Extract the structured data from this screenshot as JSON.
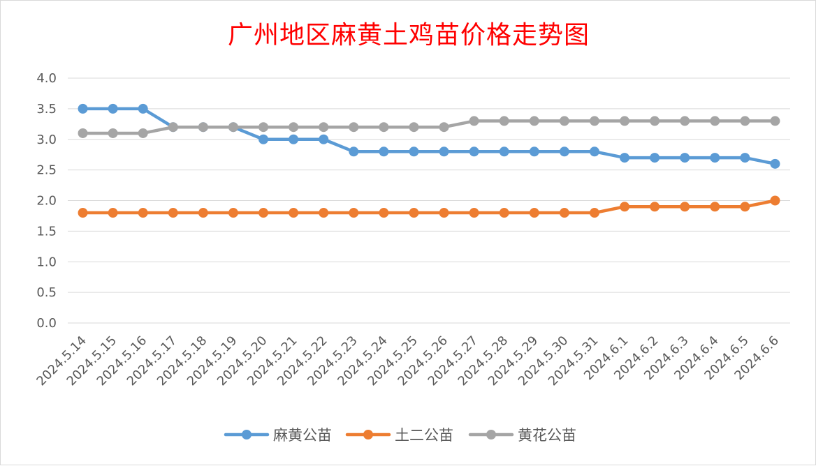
{
  "chart_data": {
    "type": "line",
    "title": "广州地区麻黄土鸡苗价格走势图",
    "xlabel": "",
    "ylabel": "",
    "ylim": [
      0,
      4
    ],
    "yticks": [
      "0.0",
      "0.5",
      "1.0",
      "1.5",
      "2.0",
      "2.5",
      "3.0",
      "3.5",
      "4.0"
    ],
    "grid": true,
    "legend_position": "bottom",
    "categories": [
      "2024.5.14",
      "2024.5.15",
      "2024.5.16",
      "2024.5.17",
      "2024.5.18",
      "2024.5.19",
      "2024.5.20",
      "2024.5.21",
      "2024.5.22",
      "2024.5.23",
      "2024.5.24",
      "2024.5.25",
      "2024.5.26",
      "2024.5.27",
      "2024.5.28",
      "2024.5.29",
      "2024.5.30",
      "2024.5.31",
      "2024.6.1",
      "2024.6.2",
      "2024.6.3",
      "2024.6.4",
      "2024.6.5",
      "2024.6.6"
    ],
    "series": [
      {
        "name": "麻黄公苗",
        "color": "#5b9bd5",
        "values": [
          3.5,
          3.5,
          3.5,
          3.2,
          3.2,
          3.2,
          3.0,
          3.0,
          3.0,
          2.8,
          2.8,
          2.8,
          2.8,
          2.8,
          2.8,
          2.8,
          2.8,
          2.8,
          2.7,
          2.7,
          2.7,
          2.7,
          2.7,
          2.6
        ]
      },
      {
        "name": "土二公苗",
        "color": "#ed7d31",
        "values": [
          1.8,
          1.8,
          1.8,
          1.8,
          1.8,
          1.8,
          1.8,
          1.8,
          1.8,
          1.8,
          1.8,
          1.8,
          1.8,
          1.8,
          1.8,
          1.8,
          1.8,
          1.8,
          1.9,
          1.9,
          1.9,
          1.9,
          1.9,
          2.0
        ]
      },
      {
        "name": "黄花公苗",
        "color": "#a5a5a5",
        "values": [
          3.1,
          3.1,
          3.1,
          3.2,
          3.2,
          3.2,
          3.2,
          3.2,
          3.2,
          3.2,
          3.2,
          3.2,
          3.2,
          3.3,
          3.3,
          3.3,
          3.3,
          3.3,
          3.3,
          3.3,
          3.3,
          3.3,
          3.3,
          3.3
        ]
      }
    ]
  }
}
